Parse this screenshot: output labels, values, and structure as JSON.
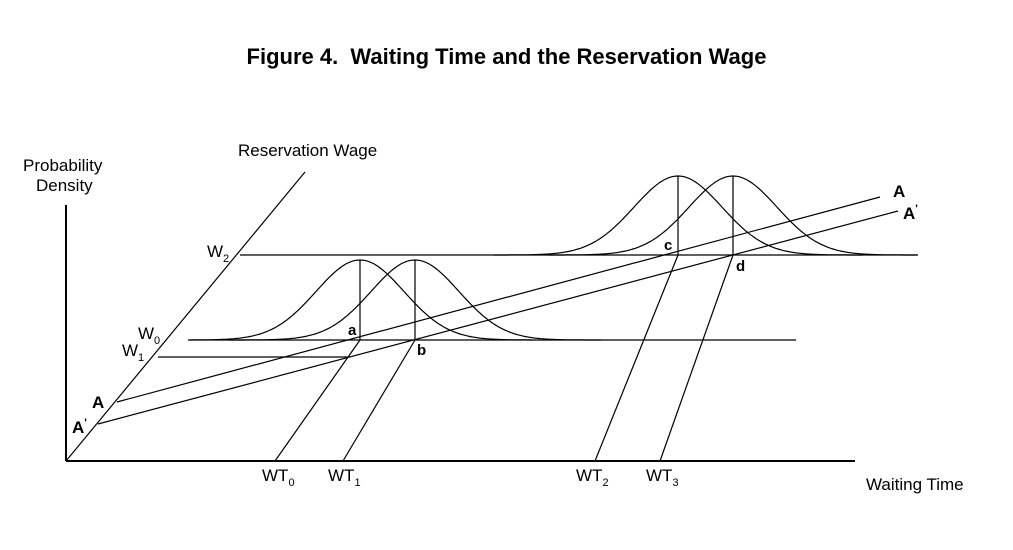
{
  "title": "Figure 4.  Waiting Time and the Reservation Wage",
  "axes": {
    "y_label_line1": "Probability",
    "y_label_line2": "Density",
    "diagonal_label": "Reservation Wage",
    "x_label": "Waiting Time"
  },
  "wage_levels": [
    {
      "base": "W",
      "sub": "2"
    },
    {
      "base": "W",
      "sub": "0"
    },
    {
      "base": "W",
      "sub": "1"
    }
  ],
  "lines": {
    "A": "A",
    "A_prime": "A",
    "prime_mark": "'"
  },
  "points": [
    "a",
    "b",
    "c",
    "d"
  ],
  "waiting_times": [
    {
      "base": "WT",
      "sub": "0"
    },
    {
      "base": "WT",
      "sub": "1"
    },
    {
      "base": "WT",
      "sub": "2"
    },
    {
      "base": "WT",
      "sub": "3"
    }
  ]
}
